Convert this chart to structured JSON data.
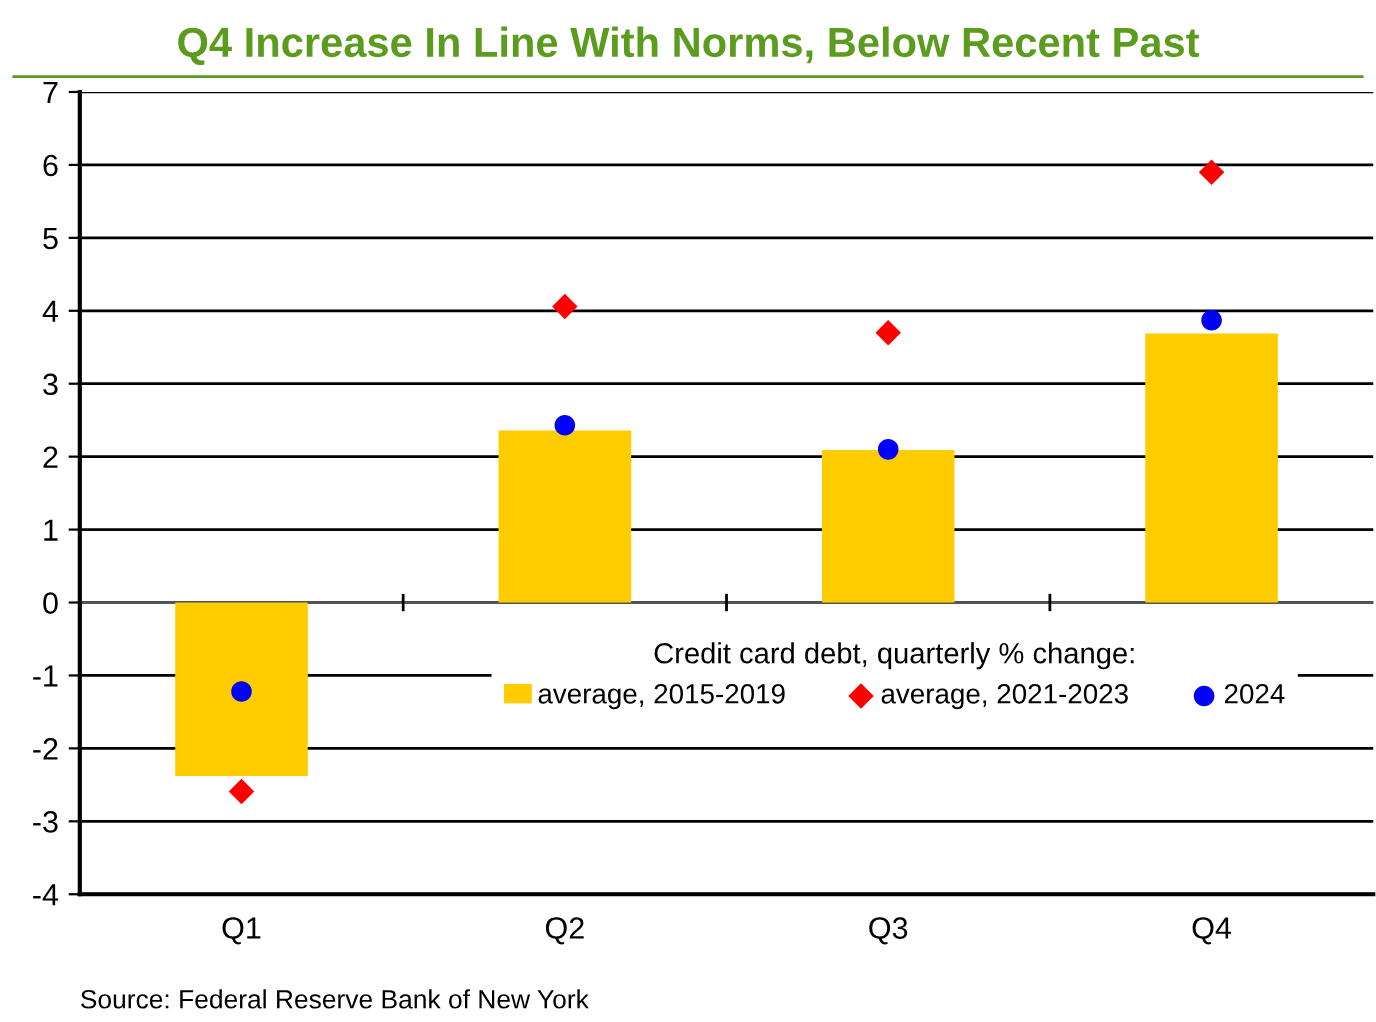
{
  "chart_data": {
    "type": "bar",
    "title": "Q4 Increase In Line With Norms, Below Recent Past",
    "legend_title": "Credit card debt, quarterly % change:",
    "categories": [
      "Q1",
      "Q2",
      "Q3",
      "Q4"
    ],
    "series": [
      {
        "name": "average, 2015-2019",
        "color": "#ffcc00",
        "values": [
          -2.38,
          2.36,
          2.09,
          3.69
        ]
      },
      {
        "name": "average, 2021-2023",
        "type": "scatter",
        "marker": "diamond",
        "color": "#ff0000",
        "values": [
          -2.59,
          4.06,
          3.7,
          5.9
        ]
      },
      {
        "name": "2024",
        "type": "scatter",
        "marker": "circle",
        "color": "#0000ff",
        "values": [
          -1.22,
          2.43,
          2.1,
          3.87
        ]
      }
    ],
    "ylim": [
      -4,
      7
    ],
    "yticks": [
      -4,
      -3,
      -2,
      -1,
      0,
      1,
      2,
      3,
      4,
      5,
      6,
      7
    ],
    "grid": "y",
    "legend": "center",
    "annotations": [
      "Source: Federal Reserve Bank of New York"
    ]
  }
}
